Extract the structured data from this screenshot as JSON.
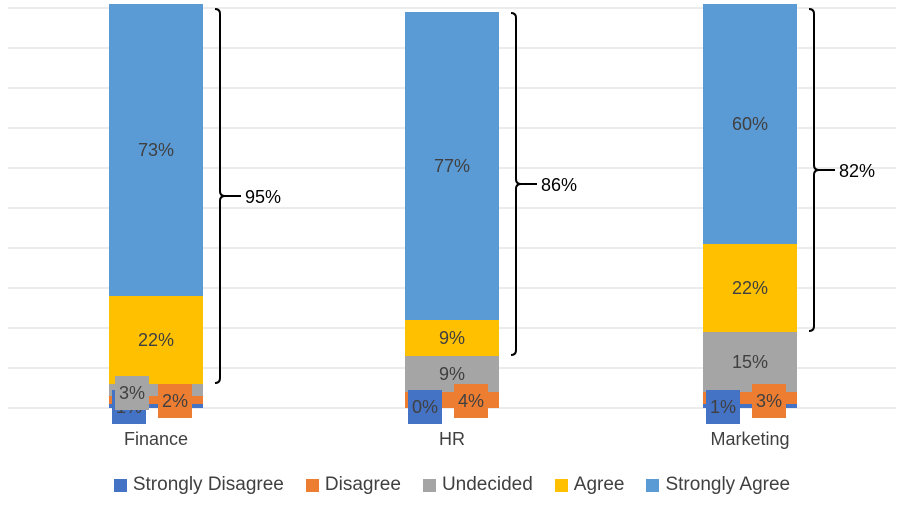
{
  "chart_data": {
    "type": "bar",
    "stacked": true,
    "categories": [
      "Finance",
      "HR",
      "Marketing"
    ],
    "series": [
      {
        "name": "Strongly Disagree",
        "values": [
          1,
          0,
          1
        ],
        "labels": [
          "1%",
          "0%",
          "1%"
        ],
        "color": "#4472c4"
      },
      {
        "name": "Disagree",
        "values": [
          2,
          4,
          3
        ],
        "labels": [
          "2%",
          "4%",
          "3%"
        ],
        "color": "#ed7d31"
      },
      {
        "name": "Undecided",
        "values": [
          3,
          9,
          15
        ],
        "labels": [
          "3%",
          "9%",
          "15%"
        ],
        "color": "#a5a5a5"
      },
      {
        "name": "Agree",
        "values": [
          22,
          9,
          22
        ],
        "labels": [
          "22%",
          "9%",
          "22%"
        ],
        "color": "#ffc000"
      },
      {
        "name": "Strongly Agree",
        "values": [
          73,
          77,
          60
        ],
        "labels": [
          "73%",
          "77%",
          "60%"
        ],
        "color": "#5b9bd5"
      }
    ],
    "annotations": [
      {
        "category": "Finance",
        "label": "95%"
      },
      {
        "category": "HR",
        "label": "86%"
      },
      {
        "category": "Marketing",
        "label": "82%"
      }
    ],
    "ylim": [
      0,
      100
    ],
    "grid": true,
    "legend_position": "bottom"
  }
}
